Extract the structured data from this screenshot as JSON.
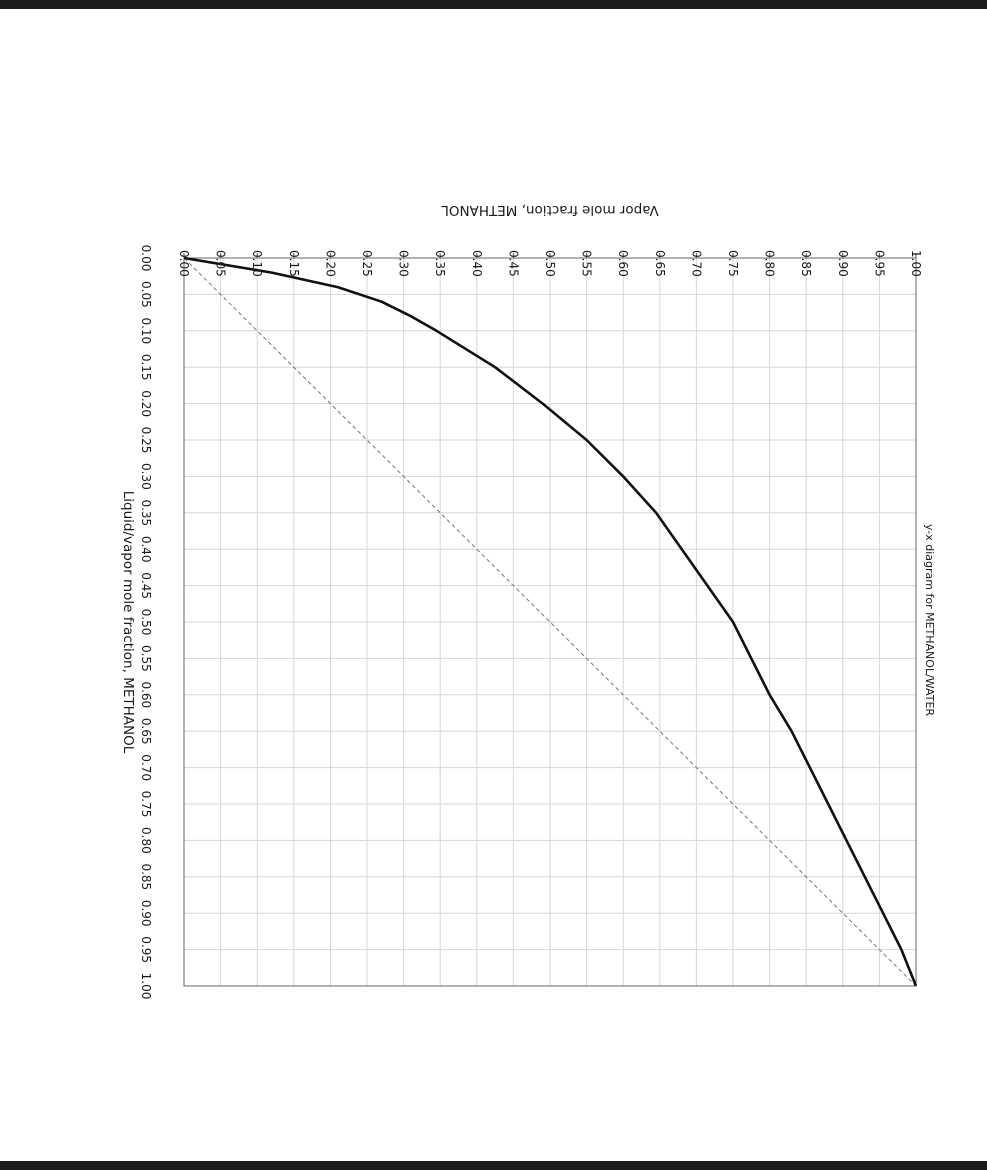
{
  "chart_data": {
    "type": "line",
    "title": "y-x diagram for METHANOL/WATER",
    "xlabel": "Liquid/vapor mole fraction, METHANOL",
    "ylabel": "Vapor mole fraction, METHANOL",
    "xlim": [
      0,
      1
    ],
    "ylim": [
      0,
      1
    ],
    "x_ticks": [
      "0.00",
      "0.05",
      "0.10",
      "0.15",
      "0.20",
      "0.25",
      "0.30",
      "0.35",
      "0.40",
      "0.45",
      "0.50",
      "0.55",
      "0.60",
      "0.65",
      "0.70",
      "0.75",
      "0.80",
      "0.85",
      "0.90",
      "0.95",
      "1.00"
    ],
    "y_ticks": [
      "0.00",
      "0.05",
      "0.10",
      "0.15",
      "0.20",
      "0.25",
      "0.30",
      "0.35",
      "0.40",
      "0.45",
      "0.50",
      "0.55",
      "0.60",
      "0.65",
      "0.70",
      "0.75",
      "0.80",
      "0.85",
      "0.90",
      "0.95",
      "1.00"
    ],
    "grid": true,
    "orientation": "rotated 90 degrees clockwise",
    "series": [
      {
        "style": "solid",
        "color": "#111111",
        "x": [
          0.0,
          0.02,
          0.04,
          0.06,
          0.08,
          0.1,
          0.15,
          0.2,
          0.25,
          0.3,
          0.35,
          0.4,
          0.45,
          0.5,
          0.55,
          0.6,
          0.65,
          0.7,
          0.75,
          0.8,
          0.85,
          0.9,
          0.95,
          1.0
        ],
        "y": [
          0.0,
          0.12,
          0.21,
          0.27,
          0.31,
          0.345,
          0.425,
          0.49,
          0.55,
          0.6,
          0.645,
          0.68,
          0.715,
          0.75,
          0.775,
          0.8,
          0.83,
          0.855,
          0.88,
          0.905,
          0.93,
          0.955,
          0.98,
          1.0
        ]
      },
      {
        "style": "dashed",
        "color": "#777777",
        "x": [
          0,
          1
        ],
        "y": [
          0,
          1
        ]
      }
    ]
  }
}
